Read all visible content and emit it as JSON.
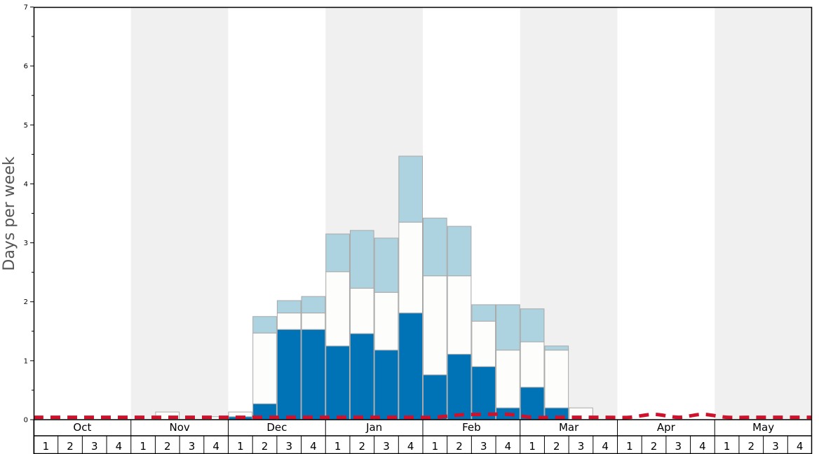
{
  "chart_data": {
    "type": "bar",
    "ylabel": "Days per week",
    "ylim": [
      0,
      7
    ],
    "yticks": [
      "0",
      "1",
      "2",
      "3",
      "4",
      "5",
      "6",
      "7"
    ],
    "months": [
      "Oct",
      "Nov",
      "Dec",
      "Jan",
      "Feb",
      "Mar",
      "Apr",
      "May"
    ],
    "week_labels": [
      "1",
      "2",
      "3",
      "4"
    ],
    "colors": {
      "band_shade": "#f0f0f0",
      "dark": "#0073b6",
      "white": "#fdfdfb",
      "light": "#aed3e0",
      "bar_edge": "#a8a8a8",
      "dashed_line": "#d0112b"
    },
    "series": [
      {
        "color_key": "dark",
        "values": [
          0,
          0,
          0,
          0,
          0,
          0,
          0,
          0,
          0.05,
          0.27,
          1.53,
          1.53,
          1.25,
          1.46,
          1.18,
          1.81,
          0.76,
          1.11,
          0.9,
          0.2,
          0.55,
          0.2,
          0,
          0,
          0,
          0,
          0,
          0,
          0,
          0,
          0,
          0
        ]
      },
      {
        "color_key": "white",
        "values": [
          0,
          0,
          0,
          0,
          0,
          0.13,
          0,
          0.05,
          0.08,
          1.2,
          0.28,
          0.28,
          1.26,
          0.77,
          0.98,
          1.54,
          1.68,
          1.33,
          0.77,
          0.98,
          0.77,
          0.98,
          0.2,
          0,
          0,
          0,
          0,
          0,
          0,
          0,
          0,
          0
        ]
      },
      {
        "color_key": "light",
        "values": [
          0,
          0,
          0,
          0,
          0,
          0,
          0,
          0,
          0,
          0.28,
          0.21,
          0.28,
          0.64,
          0.98,
          0.92,
          1.12,
          0.98,
          0.84,
          0.28,
          0.77,
          0.56,
          0.07,
          0,
          0,
          0,
          0,
          0,
          0,
          0,
          0,
          0,
          0
        ]
      }
    ],
    "dashed_line_values": [
      0.04,
      0.04,
      0.04,
      0.04,
      0.04,
      0.04,
      0.04,
      0.04,
      0.04,
      0.04,
      0.04,
      0.04,
      0.04,
      0.04,
      0.04,
      0.04,
      0.04,
      0.08,
      0.09,
      0.09,
      0.04,
      0.04,
      0.04,
      0.04,
      0.04,
      0.09,
      0.04,
      0.09,
      0.04,
      0.04,
      0.04,
      0.04
    ]
  }
}
